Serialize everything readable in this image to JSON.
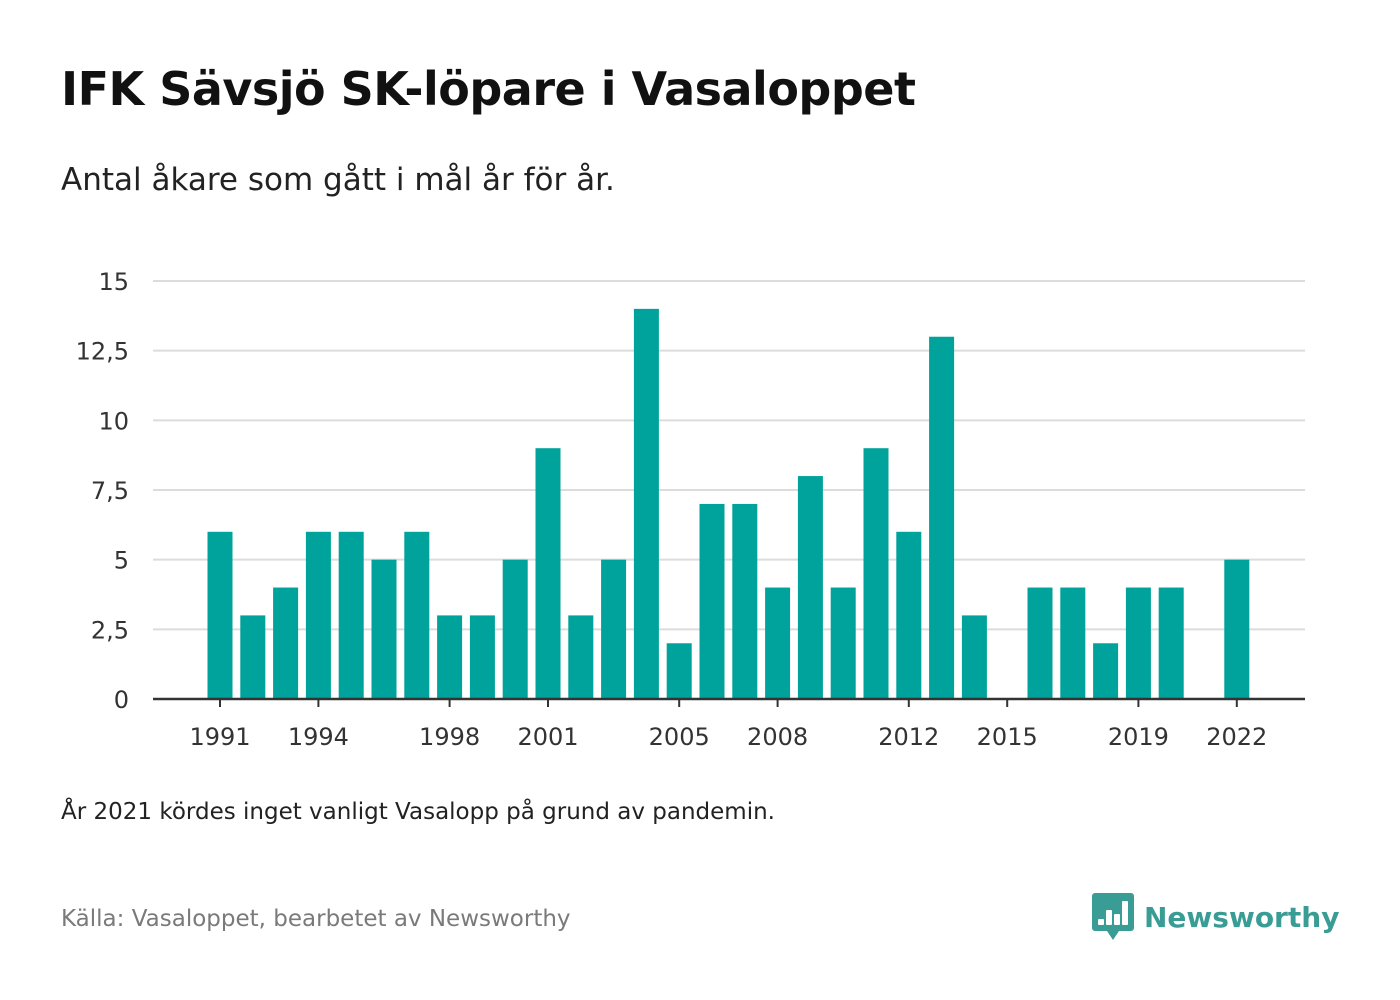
{
  "title": "IFK Sävsjö SK-löpare i Vasaloppet",
  "subtitle": "Antal åkare som gått i mål år för år.",
  "note": "År 2021 kördes inget vanligt Vasalopp på grund av pandemin.",
  "source": "Källa: Vasaloppet, bearbetet av Newsworthy",
  "brand": {
    "name": "Newsworthy",
    "icon": "newsworthy-logo-icon",
    "color": "#3a9d95"
  },
  "colors": {
    "bar": "#00a39b",
    "grid": "#dcdcdc",
    "axis": "#333333"
  },
  "chart_data": {
    "type": "bar",
    "categories": [
      1991,
      1992,
      1993,
      1994,
      1995,
      1996,
      1997,
      1998,
      1999,
      2000,
      2001,
      2002,
      2003,
      2004,
      2005,
      2006,
      2007,
      2008,
      2009,
      2010,
      2011,
      2012,
      2013,
      2014,
      2015,
      2016,
      2017,
      2018,
      2019,
      2020,
      2021,
      2022
    ],
    "values": [
      6,
      3,
      4,
      6,
      6,
      5,
      6,
      3,
      3,
      5,
      9,
      3,
      5,
      14,
      2,
      7,
      7,
      4,
      8,
      4,
      9,
      6,
      13,
      3,
      0,
      4,
      4,
      2,
      4,
      4,
      null,
      5
    ],
    "xticks": [
      "1991",
      "1994",
      "1998",
      "2001",
      "2005",
      "2008",
      "2012",
      "2015",
      "2019",
      "2022"
    ],
    "yticks": [
      "0",
      "2,5",
      "5",
      "7,5",
      "10",
      "12,5",
      "15"
    ],
    "ylim": [
      0,
      15
    ],
    "grid": true,
    "legend": "none",
    "xlabel": "",
    "ylabel": ""
  }
}
